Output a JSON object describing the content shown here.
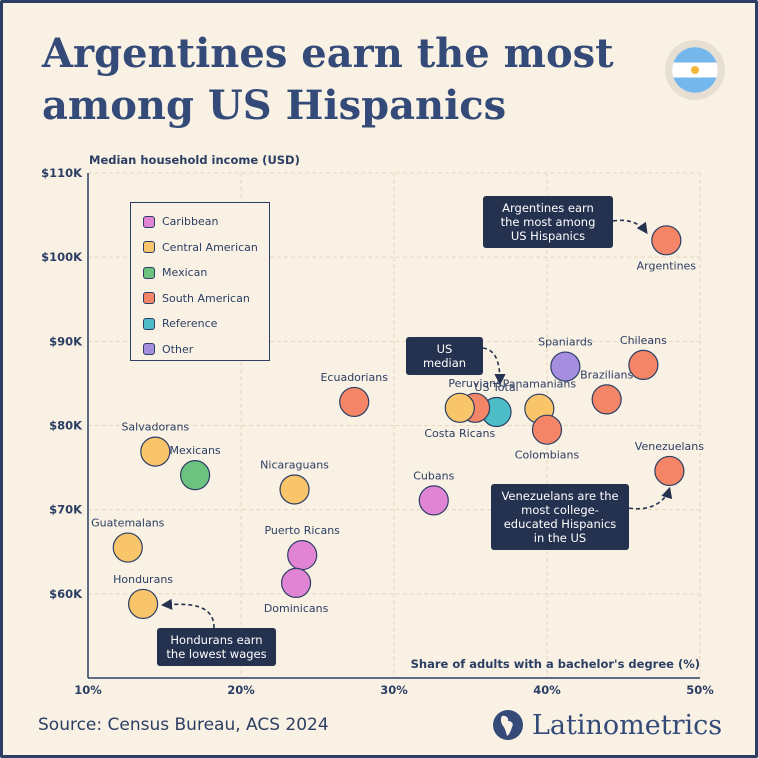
{
  "title": "Argentines earn the most among US Hispanics",
  "source": "Source: Census Bureau, ACS 2024",
  "brand": "Latinometrics",
  "flag_icon": "argentina-flag-icon",
  "colors": {
    "Caribbean": "#e184d4",
    "Central American": "#f8c56a",
    "Mexican": "#6cc37f",
    "South American": "#f48566",
    "Reference": "#4dbdc8",
    "Other": "#a58de0"
  },
  "chart_data": {
    "type": "scatter",
    "xlabel": "Share of adults with a bachelor's degree (%)",
    "ylabel": "Median household income (USD)",
    "xlim": [
      10,
      50
    ],
    "ylim": [
      50000,
      110000
    ],
    "x_ticks": [
      "10%",
      "20%",
      "30%",
      "40%",
      "50%"
    ],
    "y_ticks": [
      "$60K",
      "$70K",
      "$80K",
      "$90K",
      "$100K",
      "$110K"
    ],
    "grid": true,
    "legend_position": "top-left",
    "legend": [
      "Caribbean",
      "Central American",
      "Mexican",
      "South American",
      "Reference",
      "Other"
    ],
    "points": [
      {
        "label": "Argentines",
        "group": "South American",
        "x": 47.8,
        "y": 102000,
        "label_pos": "below"
      },
      {
        "label": "Chileans",
        "group": "South American",
        "x": 46.3,
        "y": 87200,
        "label_pos": "above"
      },
      {
        "label": "Spaniards",
        "group": "Other",
        "x": 41.2,
        "y": 87000,
        "label_pos": "above"
      },
      {
        "label": "Brazilians",
        "group": "South American",
        "x": 43.9,
        "y": 83100,
        "label_pos": "above"
      },
      {
        "label": "Panamanians",
        "group": "Central American",
        "x": 39.5,
        "y": 82000,
        "label_pos": "above"
      },
      {
        "label": "Colombians",
        "group": "South American",
        "x": 40.0,
        "y": 79500,
        "label_pos": "below"
      },
      {
        "label": "US Total",
        "group": "Reference",
        "x": 36.7,
        "y": 81600,
        "label_pos": "above"
      },
      {
        "label": "Peruvians",
        "group": "South American",
        "x": 35.3,
        "y": 82100,
        "label_pos": "above"
      },
      {
        "label": "Costa Ricans",
        "group": "Central American",
        "x": 34.3,
        "y": 82100,
        "label_pos": "below"
      },
      {
        "label": "Ecuadorians",
        "group": "South American",
        "x": 27.4,
        "y": 82800,
        "label_pos": "above"
      },
      {
        "label": "Venezuelans",
        "group": "South American",
        "x": 48.0,
        "y": 74600,
        "label_pos": "above"
      },
      {
        "label": "Cubans",
        "group": "Caribbean",
        "x": 32.6,
        "y": 71100,
        "label_pos": "above"
      },
      {
        "label": "Salvadorans",
        "group": "Central American",
        "x": 14.4,
        "y": 76900,
        "label_pos": "above"
      },
      {
        "label": "Mexicans",
        "group": "Mexican",
        "x": 17.0,
        "y": 74100,
        "label_pos": "above"
      },
      {
        "label": "Nicaraguans",
        "group": "Central American",
        "x": 23.5,
        "y": 72400,
        "label_pos": "above"
      },
      {
        "label": "Guatemalans",
        "group": "Central American",
        "x": 12.6,
        "y": 65500,
        "label_pos": "above"
      },
      {
        "label": "Puerto Ricans",
        "group": "Caribbean",
        "x": 24.0,
        "y": 64600,
        "label_pos": "above"
      },
      {
        "label": "Dominicans",
        "group": "Caribbean",
        "x": 23.6,
        "y": 61300,
        "label_pos": "below"
      },
      {
        "label": "Hondurans",
        "group": "Central American",
        "x": 13.6,
        "y": 58800,
        "label_pos": "above"
      }
    ],
    "annotations": [
      {
        "id": "argentines",
        "text": "Argentines earn the most among US Hispanics"
      },
      {
        "id": "us-median",
        "text": "US median"
      },
      {
        "id": "venezuelans",
        "text": "Venezuelans are the most college-educated Hispanics in the US"
      },
      {
        "id": "hondurans",
        "text": "Hondurans earn the lowest wages"
      }
    ]
  }
}
